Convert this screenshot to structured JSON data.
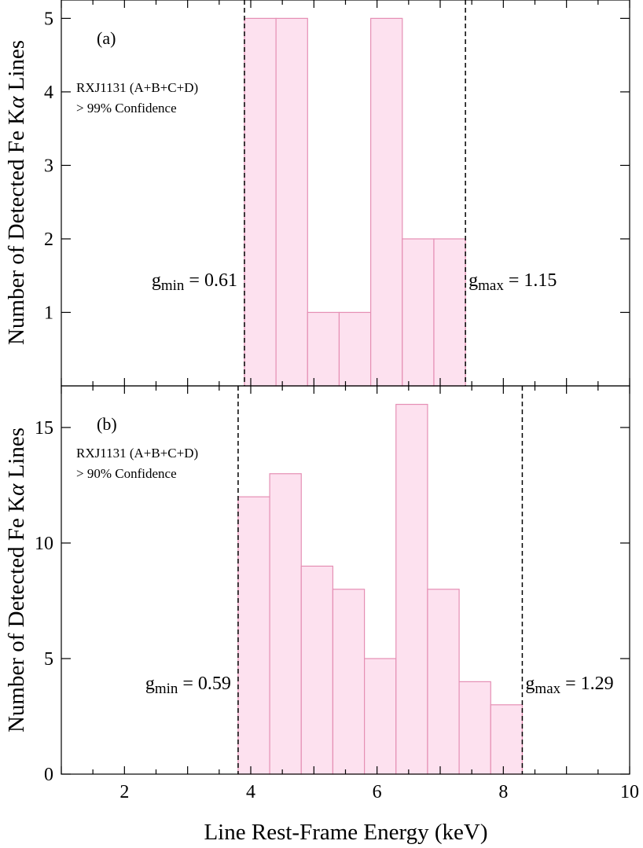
{
  "figure": {
    "xlabel": "Line Rest-Frame Energy (keV)",
    "ylabel_pre": "Number of Detected Fe K",
    "ylabel_greek": "α",
    "ylabel_post": " Lines"
  },
  "chart_data": [
    {
      "type": "bar",
      "panel_label": "(a)",
      "annotation_line1": "RXJ1131 (A+B+C+D)",
      "annotation_line2": "> 99% Confidence",
      "xlabel": "Line Rest-Frame Energy (keV)",
      "ylabel": "Number of Detected Fe Kα Lines",
      "xlim": [
        1,
        10
      ],
      "ylim": [
        0,
        5.25
      ],
      "yticks": [
        "1",
        "2",
        "3",
        "4",
        "5"
      ],
      "bin_width": 0.5,
      "bins": [
        {
          "x0": 3.9,
          "value": 5
        },
        {
          "x0": 4.4,
          "value": 5
        },
        {
          "x0": 4.9,
          "value": 1
        },
        {
          "x0": 5.4,
          "value": 1
        },
        {
          "x0": 5.9,
          "value": 5
        },
        {
          "x0": 6.4,
          "value": 2
        },
        {
          "x0": 6.9,
          "value": 2
        }
      ],
      "gmin": {
        "energy": 3.9,
        "label": "g",
        "sub": "min",
        "value_text": " = 0.61"
      },
      "gmax": {
        "energy": 7.4,
        "label": "g",
        "sub": "max",
        "value_text": " = 1.15"
      }
    },
    {
      "type": "bar",
      "panel_label": "(b)",
      "annotation_line1": "RXJ1131 (A+B+C+D)",
      "annotation_line2": "> 90% Confidence",
      "xlabel": "Line Rest-Frame Energy (keV)",
      "ylabel": "Number of Detected Fe Kα Lines",
      "xlim": [
        1,
        10
      ],
      "ylim": [
        0,
        16.8
      ],
      "yticks": [
        "0",
        "5",
        "10",
        "15"
      ],
      "xticks": [
        "2",
        "4",
        "6",
        "8",
        "10"
      ],
      "bin_width": 0.5,
      "bins": [
        {
          "x0": 3.8,
          "value": 12
        },
        {
          "x0": 4.3,
          "value": 13
        },
        {
          "x0": 4.8,
          "value": 9
        },
        {
          "x0": 5.3,
          "value": 8
        },
        {
          "x0": 5.8,
          "value": 5
        },
        {
          "x0": 6.3,
          "value": 16
        },
        {
          "x0": 6.8,
          "value": 8
        },
        {
          "x0": 7.3,
          "value": 4
        },
        {
          "x0": 7.8,
          "value": 3
        }
      ],
      "gmin": {
        "energy": 3.8,
        "label": "g",
        "sub": "min",
        "value_text": " = 0.59"
      },
      "gmax": {
        "energy": 8.3,
        "label": "g",
        "sub": "max",
        "value_text": " = 1.29"
      }
    }
  ]
}
